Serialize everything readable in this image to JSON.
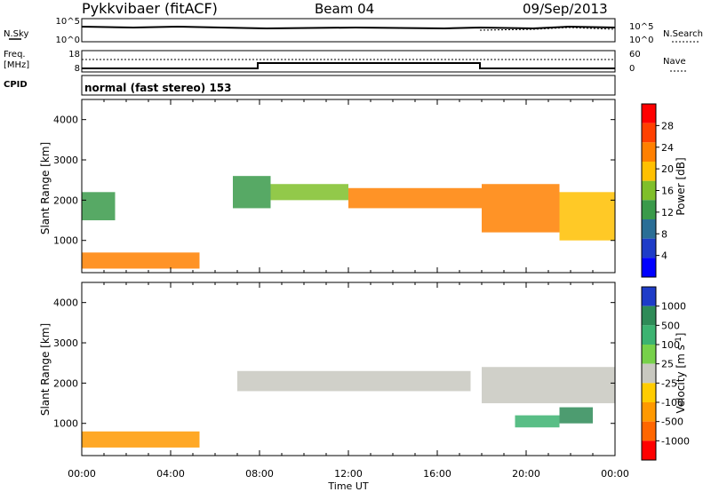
{
  "header": {
    "title": "Pykkvibaer (fitACF)",
    "beam": "Beam 04",
    "date": "09/Sep/2013"
  },
  "nsky_panel": {
    "left_label": "N.Sky",
    "left_ticks": [
      "10^5",
      "10^0"
    ],
    "right_label": "N.Search",
    "right_ticks": [
      "10^5",
      "10^0"
    ]
  },
  "freq_panel": {
    "left_label_line1": "Freq.",
    "left_label_line2": "[MHz]",
    "left_ticks": [
      "18",
      "8"
    ],
    "right_label": "Nave",
    "right_ticks": [
      "60",
      "0"
    ]
  },
  "cpid": {
    "label": "CPID",
    "text": "normal (fast stereo) 153"
  },
  "x_axis": {
    "ticks": [
      "00:00",
      "04:00",
      "08:00",
      "12:00",
      "16:00",
      "20:00",
      "00:00"
    ],
    "label": "Time UT"
  },
  "chart_data": [
    {
      "type": "heatmap",
      "quantity": "Power",
      "ylabel": "Slant Range [km]",
      "ylim": [
        200,
        4500
      ],
      "yticks": [
        "1000",
        "2000",
        "3000",
        "4000"
      ],
      "xlim_hours": [
        0,
        24
      ],
      "colorbar": {
        "label": "Power [dB]",
        "ticks": [
          "4",
          "8",
          "12",
          "16",
          "20",
          "24",
          "28"
        ],
        "colors": [
          "#0000ff",
          "#1e3cc8",
          "#2a6e96",
          "#3a9a4a",
          "#7fbf2a",
          "#ffc000",
          "#ff8000",
          "#ff4000",
          "#ff0000"
        ]
      },
      "regions": [
        {
          "t0": 0.0,
          "t1": 5.3,
          "r0": 300,
          "r1": 700,
          "level": 22
        },
        {
          "t0": 0.0,
          "t1": 1.5,
          "r0": 1500,
          "r1": 2200,
          "level": 10
        },
        {
          "t0": 6.8,
          "t1": 8.5,
          "r0": 1800,
          "r1": 2600,
          "level": 12
        },
        {
          "t0": 8.5,
          "t1": 12.0,
          "r0": 2000,
          "r1": 2400,
          "level": 16
        },
        {
          "t0": 12.0,
          "t1": 18.0,
          "r0": 1800,
          "r1": 2300,
          "level": 22
        },
        {
          "t0": 18.0,
          "t1": 21.5,
          "r0": 1200,
          "r1": 2400,
          "level": 24
        },
        {
          "t0": 21.5,
          "t1": 24.0,
          "r0": 1000,
          "r1": 2200,
          "level": 20
        }
      ]
    },
    {
      "type": "heatmap",
      "quantity": "Velocity",
      "ylabel": "Slant Range [km]",
      "ylim": [
        200,
        4500
      ],
      "yticks": [
        "1000",
        "2000",
        "3000",
        "4000"
      ],
      "xlim_hours": [
        0,
        24
      ],
      "colorbar": {
        "label": "Velocity [m s^-1]",
        "ticks": [
          "1000",
          "500",
          "100",
          "25",
          "-25",
          "-100",
          "-500",
          "-1000"
        ],
        "colors": [
          "#1e3cc8",
          "#2e8b57",
          "#3cb371",
          "#77d14a",
          "#c8c8c0",
          "#ffcc00",
          "#ff9900",
          "#ff6600",
          "#ff0000"
        ]
      },
      "regions": [
        {
          "t0": 0.0,
          "t1": 5.3,
          "r0": 400,
          "r1": 800,
          "velocity": -300
        },
        {
          "t0": 7.0,
          "t1": 17.5,
          "r0": 1800,
          "r1": 2300,
          "velocity": 0
        },
        {
          "t0": 18.0,
          "t1": 24.0,
          "r0": 1500,
          "r1": 2400,
          "velocity": 0
        },
        {
          "t0": 19.5,
          "t1": 21.5,
          "r0": 900,
          "r1": 1200,
          "velocity": 400
        },
        {
          "t0": 21.5,
          "t1": 23.0,
          "r0": 1000,
          "r1": 1400,
          "velocity": 800
        }
      ]
    }
  ]
}
